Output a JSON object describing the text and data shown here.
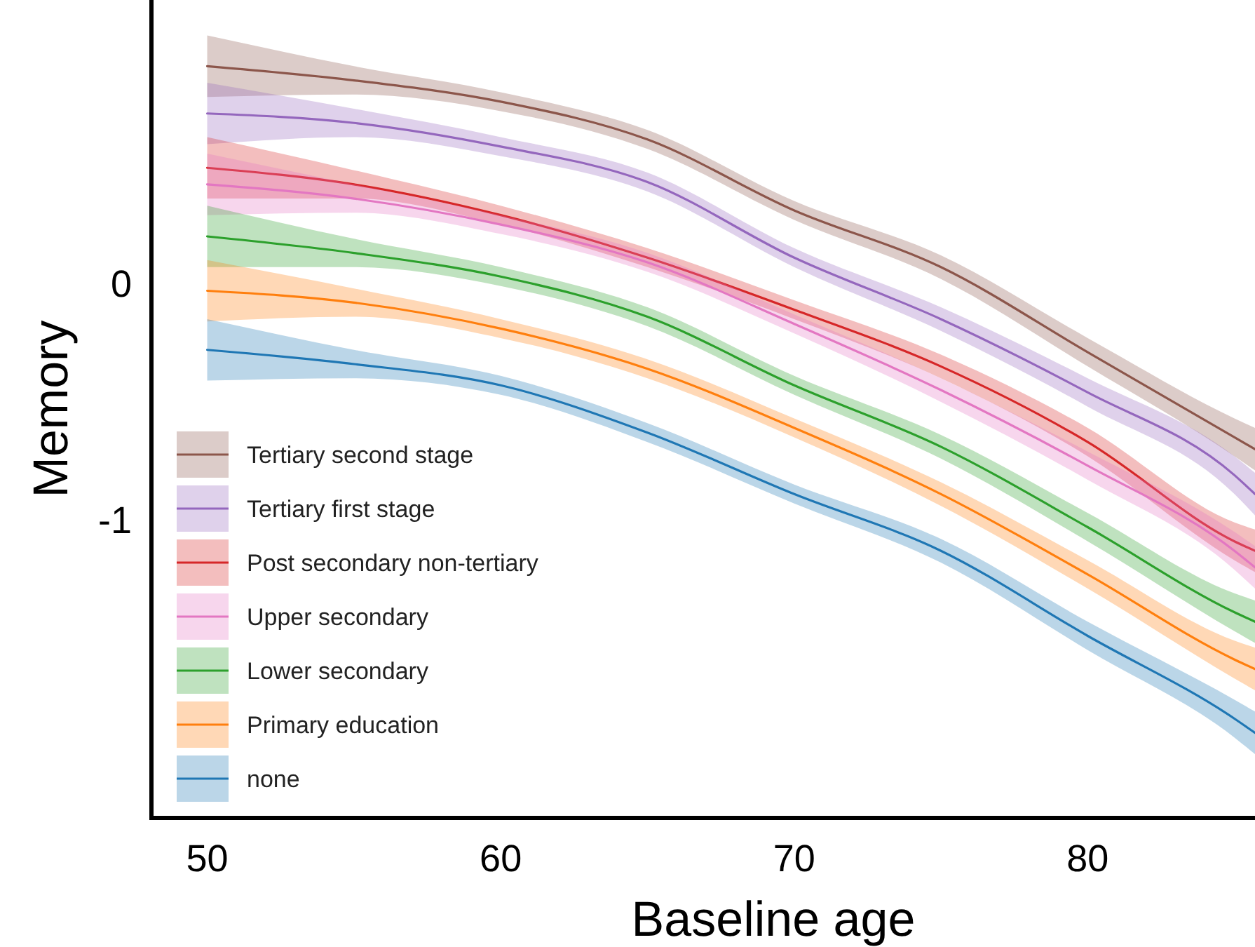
{
  "chart_data": {
    "type": "line",
    "xlabel": "Baseline age",
    "ylabel": "Memory",
    "x": [
      50,
      55,
      60,
      65,
      70,
      75,
      80,
      85,
      85.7
    ],
    "xlim": [
      48.1,
      85.7
    ],
    "xticks": [
      50,
      60,
      70,
      80
    ],
    "ylim": [
      -2.26,
      1.2
    ],
    "yticks": [
      0,
      -1
    ],
    "grid": false,
    "legend": "bottom left",
    "marker": "none",
    "line_style": "solid",
    "series": [
      {
        "name": "Tertiary second stage",
        "color": "#8c564b",
        "values": [
          0.92,
          0.86,
          0.77,
          0.61,
          0.31,
          0.07,
          -0.29,
          -0.65,
          -0.7
        ],
        "lower": [
          0.79,
          0.8,
          0.73,
          0.57,
          0.27,
          0.02,
          -0.35,
          -0.73,
          -0.79
        ],
        "upper": [
          1.05,
          0.92,
          0.81,
          0.65,
          0.35,
          0.12,
          -0.23,
          -0.57,
          -0.61
        ]
      },
      {
        "name": "Tertiary first stage",
        "color": "#9467bd",
        "values": [
          0.72,
          0.68,
          0.58,
          0.43,
          0.11,
          -0.15,
          -0.46,
          -0.81,
          -0.89
        ],
        "lower": [
          0.59,
          0.62,
          0.54,
          0.39,
          0.07,
          -0.2,
          -0.52,
          -0.89,
          -0.98
        ],
        "upper": [
          0.85,
          0.74,
          0.62,
          0.47,
          0.15,
          -0.1,
          -0.4,
          -0.73,
          -0.8
        ]
      },
      {
        "name": "Post secondary non-tertiary",
        "color": "#d62728",
        "values": [
          0.49,
          0.42,
          0.29,
          0.11,
          -0.11,
          -0.35,
          -0.67,
          -1.09,
          -1.13
        ],
        "lower": [
          0.36,
          0.36,
          0.25,
          0.07,
          -0.15,
          -0.4,
          -0.73,
          -1.17,
          -1.22
        ],
        "upper": [
          0.62,
          0.48,
          0.33,
          0.15,
          -0.07,
          -0.3,
          -0.61,
          -1.01,
          -1.04
        ]
      },
      {
        "name": "Upper secondary",
        "color": "#e377c2",
        "values": [
          0.42,
          0.36,
          0.25,
          0.09,
          -0.17,
          -0.45,
          -0.77,
          -1.13,
          -1.2
        ],
        "lower": [
          0.29,
          0.3,
          0.21,
          0.05,
          -0.21,
          -0.5,
          -0.83,
          -1.21,
          -1.29
        ],
        "upper": [
          0.55,
          0.42,
          0.29,
          0.13,
          -0.13,
          -0.4,
          -0.71,
          -1.05,
          -1.11
        ]
      },
      {
        "name": "Lower secondary",
        "color": "#2ca02c",
        "values": [
          0.2,
          0.13,
          0.03,
          -0.14,
          -0.43,
          -0.69,
          -1.03,
          -1.39,
          -1.43
        ],
        "lower": [
          0.07,
          0.07,
          -0.01,
          -0.18,
          -0.47,
          -0.74,
          -1.09,
          -1.47,
          -1.52
        ],
        "upper": [
          0.33,
          0.19,
          0.07,
          -0.1,
          -0.39,
          -0.64,
          -0.97,
          -1.31,
          -1.34
        ]
      },
      {
        "name": "Primary education",
        "color": "#ff7f0e",
        "values": [
          -0.03,
          -0.08,
          -0.19,
          -0.36,
          -0.61,
          -0.89,
          -1.23,
          -1.59,
          -1.63
        ],
        "lower": [
          -0.16,
          -0.14,
          -0.23,
          -0.4,
          -0.65,
          -0.94,
          -1.29,
          -1.67,
          -1.72
        ],
        "upper": [
          0.1,
          -0.02,
          -0.15,
          -0.32,
          -0.57,
          -0.84,
          -1.17,
          -1.51,
          -1.54
        ]
      },
      {
        "name": "none",
        "color": "#1f77b4",
        "values": [
          -0.28,
          -0.34,
          -0.43,
          -0.63,
          -0.89,
          -1.13,
          -1.49,
          -1.84,
          -1.9
        ],
        "lower": [
          -0.41,
          -0.4,
          -0.47,
          -0.67,
          -0.93,
          -1.18,
          -1.55,
          -1.92,
          -1.99
        ],
        "upper": [
          -0.15,
          -0.28,
          -0.39,
          -0.59,
          -0.85,
          -1.08,
          -1.43,
          -1.76,
          -1.81
        ]
      }
    ]
  }
}
